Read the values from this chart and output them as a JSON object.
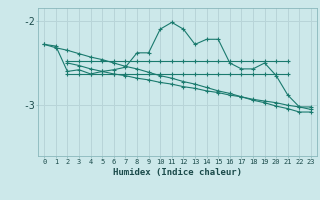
{
  "xlabel": "Humidex (Indice chaleur)",
  "bg_color": "#cce8ea",
  "line_color": "#1a7a6e",
  "grid_color": "#b8d4d8",
  "xlim": [
    -0.5,
    23.5
  ],
  "ylim": [
    -3.6,
    -1.85
  ],
  "yticks": [
    -3,
    -2
  ],
  "xticks": [
    0,
    1,
    2,
    3,
    4,
    5,
    6,
    7,
    8,
    9,
    10,
    11,
    12,
    13,
    14,
    15,
    16,
    17,
    18,
    19,
    20,
    21,
    22,
    23
  ],
  "series": {
    "zigzag": {
      "x": [
        0,
        1,
        2,
        3,
        4,
        5,
        6,
        7,
        8,
        9,
        10,
        11,
        12,
        13,
        14,
        15,
        16,
        17,
        18,
        19,
        20,
        21,
        22,
        23
      ],
      "y": [
        -2.28,
        -2.3,
        -2.6,
        -2.58,
        -2.63,
        -2.6,
        -2.58,
        -2.55,
        -2.38,
        -2.38,
        -2.1,
        -2.02,
        -2.1,
        -2.28,
        -2.22,
        -2.22,
        -2.5,
        -2.57,
        -2.57,
        -2.5,
        -2.65,
        -2.88,
        -3.02,
        -3.02
      ]
    },
    "flat_upper": {
      "x": [
        2,
        3,
        4,
        5,
        6,
        7,
        8,
        9,
        10,
        11,
        12,
        13,
        14,
        15,
        16,
        17,
        18,
        19,
        20,
        21
      ],
      "y": [
        -2.48,
        -2.48,
        -2.48,
        -2.48,
        -2.48,
        -2.48,
        -2.48,
        -2.48,
        -2.48,
        -2.48,
        -2.48,
        -2.48,
        -2.48,
        -2.48,
        -2.48,
        -2.48,
        -2.48,
        -2.48,
        -2.48,
        -2.48
      ]
    },
    "flat_lower": {
      "x": [
        2,
        3,
        4,
        5,
        6,
        7,
        8,
        9,
        10,
        11,
        12,
        13,
        14,
        15,
        16,
        17,
        18,
        19,
        20,
        21
      ],
      "y": [
        -2.63,
        -2.63,
        -2.63,
        -2.63,
        -2.63,
        -2.63,
        -2.63,
        -2.63,
        -2.63,
        -2.63,
        -2.63,
        -2.63,
        -2.63,
        -2.63,
        -2.63,
        -2.63,
        -2.63,
        -2.63,
        -2.63,
        -2.63
      ]
    },
    "decline1": {
      "x": [
        0,
        1,
        2,
        3,
        4,
        5,
        6,
        7,
        8,
        9,
        10,
        11,
        12,
        13,
        14,
        15,
        16,
        17,
        18,
        19,
        20,
        21,
        22,
        23
      ],
      "y": [
        -2.28,
        -2.32,
        -2.35,
        -2.39,
        -2.43,
        -2.46,
        -2.5,
        -2.54,
        -2.57,
        -2.61,
        -2.65,
        -2.68,
        -2.72,
        -2.75,
        -2.79,
        -2.83,
        -2.86,
        -2.9,
        -2.94,
        -2.97,
        -3.01,
        -3.04,
        -3.08,
        -3.08
      ]
    },
    "decline2": {
      "x": [
        2,
        3,
        4,
        5,
        6,
        7,
        8,
        9,
        10,
        11,
        12,
        13,
        14,
        15,
        16,
        17,
        18,
        19,
        20,
        21,
        22,
        23
      ],
      "y": [
        -2.5,
        -2.53,
        -2.57,
        -2.6,
        -2.63,
        -2.65,
        -2.68,
        -2.7,
        -2.73,
        -2.75,
        -2.78,
        -2.8,
        -2.83,
        -2.85,
        -2.88,
        -2.9,
        -2.93,
        -2.95,
        -2.97,
        -3.0,
        -3.02,
        -3.05
      ]
    }
  }
}
